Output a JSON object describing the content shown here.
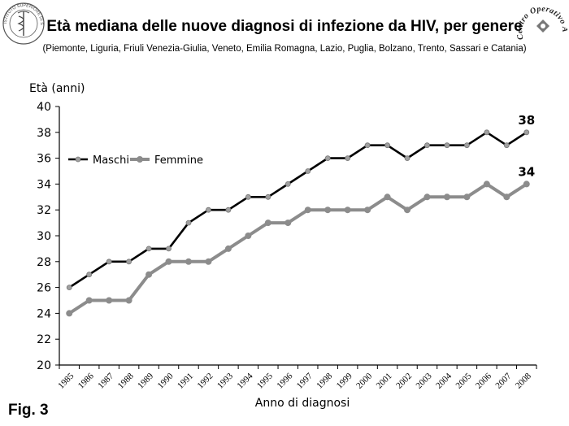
{
  "header": {
    "title": "Età mediana delle nuove diagnosi di infezione da HIV, per genere",
    "subtitle": "(Piemonte, Liguria, Friuli Venezia-Giulia, Veneto, Emilia Romagna, Lazio,  Puglia, Bolzano, Trento, Sassari e Catania)",
    "fig_label": "Fig. 3"
  },
  "logos": {
    "left_text": "ISTITUTO SUPERIORE DI SANITÀ",
    "right_text": "Centro Operativo AIDS"
  },
  "chart_data": {
    "type": "line",
    "title": "Età mediana delle nuove diagnosi di infezione da HIV, per genere",
    "xlabel": "Anno di diagnosi",
    "ylabel": "Età (anni)",
    "ylim": [
      20,
      40
    ],
    "yticks": [
      20,
      22,
      24,
      26,
      28,
      30,
      32,
      34,
      36,
      38,
      40
    ],
    "grid": false,
    "legend_position": "top-left",
    "x": [
      "1985",
      "1986",
      "1987",
      "1988",
      "1989",
      "1990",
      "1991",
      "1992",
      "1993",
      "1994",
      "1995",
      "1996",
      "1997",
      "1998",
      "1999",
      "2000",
      "2001",
      "2002",
      "2003",
      "2004",
      "2005",
      "2006",
      "2007",
      "2008"
    ],
    "series": [
      {
        "name": "Maschi",
        "color": "#000000",
        "marker_color": "#a0a0a0",
        "values": [
          26,
          27,
          28,
          28,
          29,
          29,
          31,
          32,
          32,
          33,
          33,
          34,
          35,
          36,
          36,
          37,
          37,
          36,
          37,
          37,
          37,
          38,
          37,
          38
        ],
        "end_label": "38"
      },
      {
        "name": "Femmine",
        "color": "#8c8c8c",
        "marker_color": "#8c8c8c",
        "values": [
          24,
          25,
          25,
          25,
          27,
          28,
          28,
          28,
          29,
          30,
          31,
          31,
          32,
          32,
          32,
          32,
          33,
          32,
          33,
          33,
          33,
          34,
          33,
          34
        ],
        "end_label": "34"
      }
    ]
  }
}
